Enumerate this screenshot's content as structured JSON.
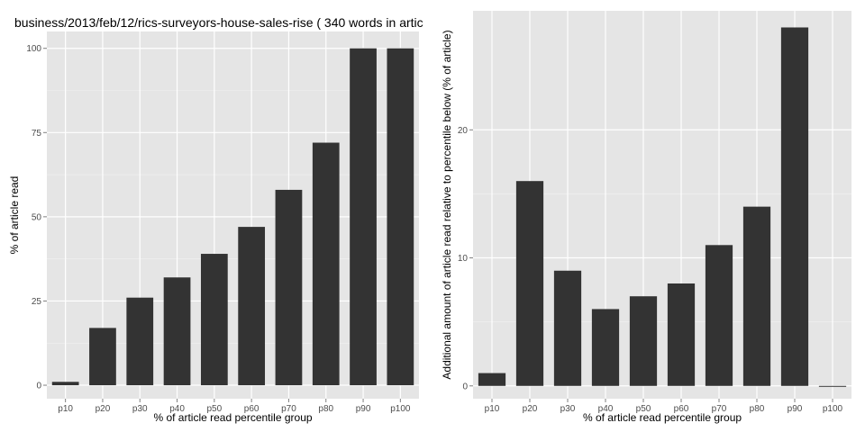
{
  "chart_data": [
    {
      "type": "bar",
      "title": "business/2013/feb/12/rics-surveyors-house-sales-rise ( 340 words in artic",
      "xlabel": "% of article read percentile group",
      "ylabel": "% of article read",
      "categories": [
        "p10",
        "p20",
        "p30",
        "p40",
        "p50",
        "p60",
        "p70",
        "p80",
        "p90",
        "p100"
      ],
      "values": [
        1,
        17,
        26,
        32,
        39,
        47,
        58,
        72,
        100,
        100
      ],
      "ylim": [
        -4,
        105
      ],
      "yticks": [
        0,
        25,
        50,
        75,
        100
      ],
      "grid": true,
      "bar_color": "#333333",
      "panel_color": "#e5e5e5"
    },
    {
      "type": "bar",
      "title": "",
      "xlabel": "% of article read percentile group",
      "ylabel": "Additional amount of article read relative to percentile below (% of article)",
      "categories": [
        "p10",
        "p20",
        "p30",
        "p40",
        "p50",
        "p60",
        "p70",
        "p80",
        "p90",
        "p100"
      ],
      "values": [
        1,
        16,
        9,
        6,
        7,
        8,
        11,
        14,
        28,
        0
      ],
      "ylim": [
        -1,
        29.3
      ],
      "yticks": [
        0,
        10,
        20
      ],
      "grid": true,
      "bar_color": "#333333",
      "panel_color": "#e5e5e5"
    }
  ]
}
